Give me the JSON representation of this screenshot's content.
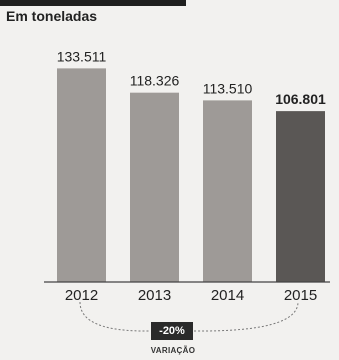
{
  "subtitle": "Em toneladas",
  "chart_data": {
    "type": "bar",
    "categories": [
      "2012",
      "2013",
      "2014",
      "2015"
    ],
    "values": [
      133511,
      118326,
      113510,
      106801
    ],
    "value_labels": [
      "133.511",
      "118.326",
      "113.510",
      "106.801"
    ],
    "ylim": [
      0,
      140000
    ],
    "grid": false,
    "colors": [
      "#9e9a97",
      "#9e9a97",
      "#9e9a97",
      "#5a5755"
    ],
    "variation": {
      "value": "-20%",
      "label": "VARIAÇÃO"
    }
  }
}
